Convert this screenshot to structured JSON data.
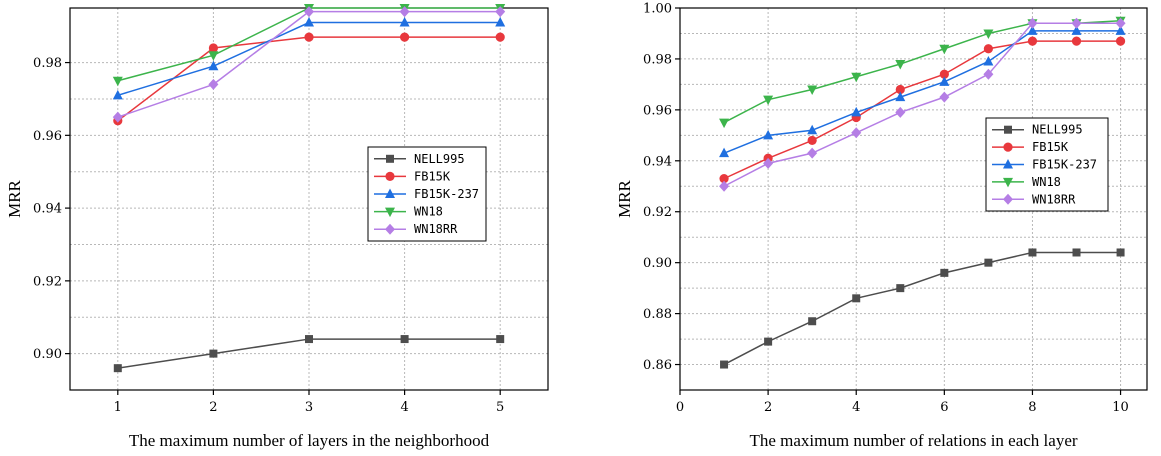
{
  "chart_data": [
    {
      "type": "line",
      "xlabel": "The maximum number of layers in the neighborhood",
      "ylabel": "MRR",
      "xlim": [
        0.5,
        5.5
      ],
      "ylim": [
        0.89,
        0.995
      ],
      "x_ticks": [
        1,
        2,
        3,
        4,
        5
      ],
      "y_ticks": [
        0.9,
        0.92,
        0.94,
        0.96,
        0.98
      ],
      "y_tick_labels": [
        "0.90",
        "0.92",
        "0.94",
        "0.96",
        "0.98"
      ],
      "grid": true,
      "legend_position": "middle-right",
      "x": [
        1,
        2,
        3,
        4,
        5
      ],
      "series": [
        {
          "name": "NELL995",
          "color": "#4d4d4d",
          "marker": "square",
          "values": [
            0.896,
            0.9,
            0.904,
            0.904,
            0.904
          ]
        },
        {
          "name": "FB15K",
          "color": "#e8383d",
          "marker": "circle",
          "values": [
            0.964,
            0.984,
            0.987,
            0.987,
            0.987
          ]
        },
        {
          "name": "FB15K-237",
          "color": "#1f6fe0",
          "marker": "triangle-up",
          "values": [
            0.971,
            0.979,
            0.991,
            0.991,
            0.991
          ]
        },
        {
          "name": "WN18",
          "color": "#3cb44b",
          "marker": "triangle-down",
          "values": [
            0.975,
            0.982,
            0.995,
            0.995,
            0.995
          ]
        },
        {
          "name": "WN18RR",
          "color": "#b57ee5",
          "marker": "diamond",
          "values": [
            0.965,
            0.974,
            0.994,
            0.994,
            0.994
          ]
        }
      ]
    },
    {
      "type": "line",
      "xlabel": "The maximum number of relations in each layer",
      "ylabel": "MRR",
      "xlim": [
        0,
        10.6
      ],
      "ylim": [
        0.85,
        1.0
      ],
      "x_ticks": [
        0,
        2,
        4,
        6,
        8,
        10
      ],
      "y_ticks": [
        0.86,
        0.88,
        0.9,
        0.92,
        0.94,
        0.96,
        0.98,
        1.0
      ],
      "y_tick_labels": [
        "0.86",
        "0.88",
        "0.90",
        "0.92",
        "0.94",
        "0.96",
        "0.98",
        "1.00"
      ],
      "grid": true,
      "legend_position": "middle-right",
      "x": [
        1,
        2,
        3,
        4,
        5,
        6,
        7,
        8,
        9,
        10
      ],
      "series": [
        {
          "name": "NELL995",
          "color": "#4d4d4d",
          "marker": "square",
          "values": [
            0.86,
            0.869,
            0.877,
            0.886,
            0.89,
            0.896,
            0.9,
            0.904,
            0.904,
            0.904
          ]
        },
        {
          "name": "FB15K",
          "color": "#e8383d",
          "marker": "circle",
          "values": [
            0.933,
            0.941,
            0.948,
            0.957,
            0.968,
            0.974,
            0.984,
            0.987,
            0.987,
            0.987
          ]
        },
        {
          "name": "FB15K-237",
          "color": "#1f6fe0",
          "marker": "triangle-up",
          "values": [
            0.943,
            0.95,
            0.952,
            0.959,
            0.965,
            0.971,
            0.979,
            0.991,
            0.991,
            0.991
          ]
        },
        {
          "name": "WN18",
          "color": "#3cb44b",
          "marker": "triangle-down",
          "values": [
            0.955,
            0.964,
            0.968,
            0.973,
            0.978,
            0.984,
            0.99,
            0.994,
            0.994,
            0.995
          ]
        },
        {
          "name": "WN18RR",
          "color": "#b57ee5",
          "marker": "diamond",
          "values": [
            0.93,
            0.939,
            0.943,
            0.951,
            0.959,
            0.965,
            0.974,
            0.994,
            0.994,
            0.994
          ]
        }
      ]
    }
  ]
}
